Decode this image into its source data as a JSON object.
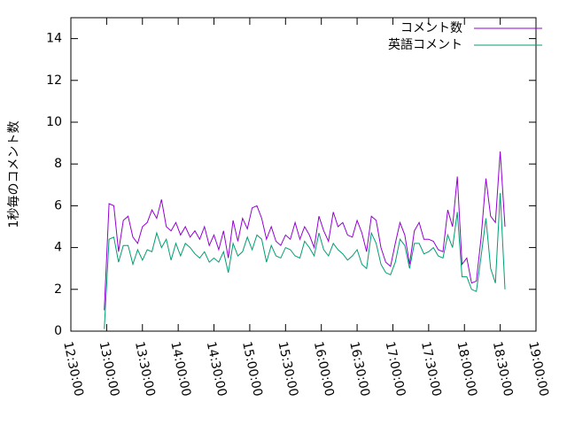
{
  "chart_data": {
    "type": "line",
    "ylabel": "1秒毎のコメント数",
    "x": [
      "12:58:00",
      "13:02:00",
      "13:06:00",
      "13:10:00",
      "13:14:00",
      "13:18:00",
      "13:22:00",
      "13:26:00",
      "13:30:00",
      "13:34:00",
      "13:38:00",
      "13:42:00",
      "13:46:00",
      "13:50:00",
      "13:54:00",
      "13:58:00",
      "14:02:00",
      "14:06:00",
      "14:10:00",
      "14:14:00",
      "14:18:00",
      "14:22:00",
      "14:26:00",
      "14:30:00",
      "14:34:00",
      "14:38:00",
      "14:42:00",
      "14:46:00",
      "14:50:00",
      "14:54:00",
      "14:58:00",
      "15:02:00",
      "15:06:00",
      "15:10:00",
      "15:14:00",
      "15:18:00",
      "15:22:00",
      "15:26:00",
      "15:30:00",
      "15:34:00",
      "15:38:00",
      "15:42:00",
      "15:46:00",
      "15:50:00",
      "15:54:00",
      "15:58:00",
      "16:02:00",
      "16:06:00",
      "16:10:00",
      "16:14:00",
      "16:18:00",
      "16:22:00",
      "16:26:00",
      "16:30:00",
      "16:34:00",
      "16:38:00",
      "16:42:00",
      "16:46:00",
      "16:50:00",
      "16:54:00",
      "16:58:00",
      "17:02:00",
      "17:06:00",
      "17:10:00",
      "17:14:00",
      "17:18:00",
      "17:22:00",
      "17:26:00",
      "17:30:00",
      "17:34:00",
      "17:38:00",
      "17:42:00",
      "17:46:00",
      "17:50:00",
      "17:54:00",
      "17:58:00",
      "18:02:00",
      "18:06:00",
      "18:10:00",
      "18:14:00",
      "18:18:00",
      "18:22:00",
      "18:26:00",
      "18:30:00",
      "18:34:00"
    ],
    "series": [
      {
        "name": "コメント数",
        "color": "#9400d3",
        "values": [
          1.0,
          6.1,
          6.0,
          3.8,
          5.3,
          5.5,
          4.5,
          4.2,
          5.0,
          5.2,
          5.8,
          5.4,
          6.3,
          5.0,
          4.8,
          5.2,
          4.6,
          5.0,
          4.5,
          4.8,
          4.4,
          5.0,
          4.1,
          4.6,
          3.9,
          4.8,
          3.5,
          5.3,
          4.3,
          5.4,
          4.9,
          5.9,
          6.0,
          5.4,
          4.4,
          5.0,
          4.3,
          4.1,
          4.6,
          4.4,
          5.2,
          4.4,
          5.0,
          4.6,
          4.0,
          5.5,
          4.8,
          4.3,
          5.7,
          5.0,
          5.2,
          4.6,
          4.5,
          5.3,
          4.7,
          3.8,
          5.5,
          5.3,
          4.0,
          3.3,
          3.1,
          4.2,
          5.2,
          4.6,
          3.2,
          4.8,
          5.2,
          4.4,
          4.4,
          4.3,
          3.9,
          3.8,
          5.8,
          5.0,
          7.4,
          3.2,
          3.5,
          2.3,
          2.4,
          4.5,
          7.3,
          5.5,
          5.2,
          8.6,
          5.0
        ]
      },
      {
        "name": "英語コメント",
        "color": "#009e73",
        "values": [
          0.1,
          4.4,
          4.5,
          3.3,
          4.1,
          4.1,
          3.2,
          3.9,
          3.4,
          3.9,
          3.8,
          4.7,
          4.0,
          4.4,
          3.4,
          4.2,
          3.6,
          4.2,
          4.0,
          3.7,
          3.5,
          3.8,
          3.3,
          3.5,
          3.3,
          3.8,
          2.8,
          4.2,
          3.6,
          3.8,
          4.5,
          3.9,
          4.6,
          4.4,
          3.3,
          4.1,
          3.6,
          3.5,
          4.0,
          3.9,
          3.6,
          3.5,
          4.3,
          4.0,
          3.6,
          4.7,
          3.9,
          3.6,
          4.2,
          3.9,
          3.7,
          3.4,
          3.6,
          3.9,
          3.2,
          3.0,
          4.7,
          4.2,
          3.2,
          2.8,
          2.7,
          3.3,
          4.4,
          4.1,
          3.0,
          4.2,
          4.2,
          3.7,
          3.8,
          4.0,
          3.6,
          3.5,
          4.6,
          4.0,
          5.7,
          2.6,
          2.6,
          2.0,
          1.9,
          3.6,
          5.4,
          3.0,
          2.3,
          6.6,
          2.0
        ]
      }
    ],
    "xlim": [
      "12:30:00",
      "19:00:00"
    ],
    "xticks": [
      "12:30:00",
      "13:00:00",
      "13:30:00",
      "14:00:00",
      "14:30:00",
      "15:00:00",
      "15:30:00",
      "16:00:00",
      "16:30:00",
      "17:00:00",
      "17:30:00",
      "18:00:00",
      "18:30:00",
      "19:00:00"
    ],
    "ylim": [
      0,
      15
    ],
    "yticks": [
      0,
      2,
      4,
      6,
      8,
      10,
      12,
      14
    ],
    "grid": false,
    "legend": "top-right"
  }
}
